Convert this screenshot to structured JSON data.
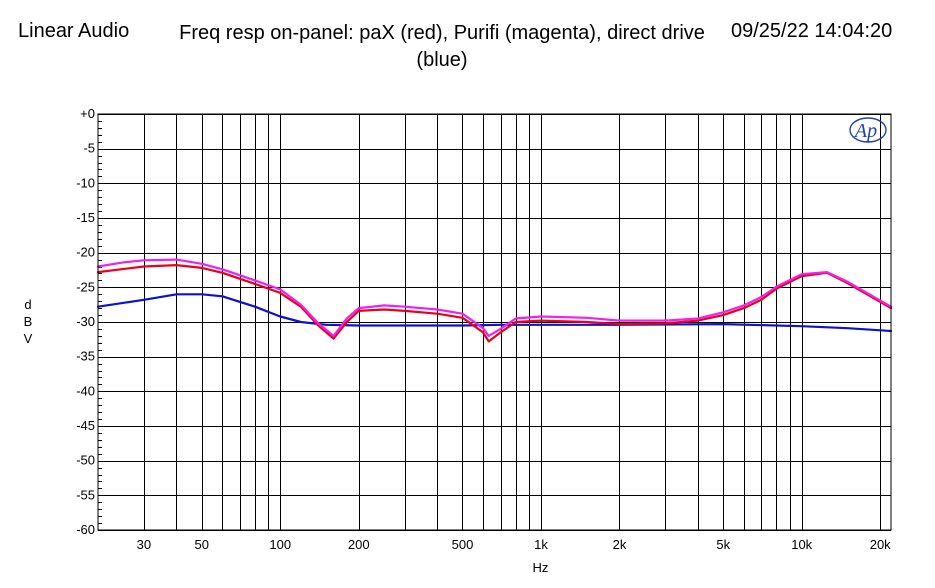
{
  "header": {
    "left": "Linear Audio",
    "title": "Freq resp on-panel: paX (red), Purifi (magenta), direct drive (blue)",
    "datetime": "09/25/22 14:04:20"
  },
  "logo": {
    "text": "Ap"
  },
  "colors": {
    "red": "#e8001c",
    "magenta": "#ee22ee",
    "blue": "#1010d0",
    "grid": "#000000",
    "logo": "#2244aa"
  },
  "chart_data": {
    "type": "line",
    "xlabel": "Hz",
    "ylabel": "d B V",
    "xscale": "log",
    "xlim": [
      20,
      22000
    ],
    "ylim": [
      -60,
      0
    ],
    "grid": true,
    "x_tick_labels": [
      {
        "value": 30,
        "label": "30"
      },
      {
        "value": 50,
        "label": "50"
      },
      {
        "value": 100,
        "label": "100"
      },
      {
        "value": 200,
        "label": "200"
      },
      {
        "value": 500,
        "label": "500"
      },
      {
        "value": 1000,
        "label": "1k"
      },
      {
        "value": 2000,
        "label": "2k"
      },
      {
        "value": 5000,
        "label": "5k"
      },
      {
        "value": 10000,
        "label": "10k"
      },
      {
        "value": 20000,
        "label": "20k"
      }
    ],
    "y_tick_labels": [
      {
        "value": 0,
        "label": "+0"
      },
      {
        "value": -5,
        "label": "-5"
      },
      {
        "value": -10,
        "label": "-10"
      },
      {
        "value": -15,
        "label": "-15"
      },
      {
        "value": -20,
        "label": "-20"
      },
      {
        "value": -25,
        "label": "-25"
      },
      {
        "value": -30,
        "label": "-30"
      },
      {
        "value": -35,
        "label": "-35"
      },
      {
        "value": -40,
        "label": "-40"
      },
      {
        "value": -45,
        "label": "-45"
      },
      {
        "value": -50,
        "label": "-50"
      },
      {
        "value": -55,
        "label": "-55"
      },
      {
        "value": -60,
        "label": "-60"
      }
    ],
    "series": [
      {
        "color": "#1010d0",
        "points": [
          [
            20,
            -27.8
          ],
          [
            30,
            -26.8
          ],
          [
            40,
            -26.0
          ],
          [
            50,
            -26.0
          ],
          [
            60,
            -26.3
          ],
          [
            80,
            -27.8
          ],
          [
            100,
            -29.2
          ],
          [
            120,
            -30.0
          ],
          [
            150,
            -30.4
          ],
          [
            200,
            -30.5
          ],
          [
            300,
            -30.5
          ],
          [
            500,
            -30.5
          ],
          [
            700,
            -30.4
          ],
          [
            1000,
            -30.4
          ],
          [
            2000,
            -30.4
          ],
          [
            5000,
            -30.3
          ],
          [
            10000,
            -30.6
          ],
          [
            15000,
            -30.9
          ],
          [
            22000,
            -31.3
          ]
        ]
      },
      {
        "color": "#e8001c",
        "points": [
          [
            20,
            -22.8
          ],
          [
            30,
            -22.0
          ],
          [
            40,
            -21.8
          ],
          [
            50,
            -22.2
          ],
          [
            60,
            -22.9
          ],
          [
            80,
            -24.5
          ],
          [
            100,
            -25.8
          ],
          [
            120,
            -27.8
          ],
          [
            140,
            -30.5
          ],
          [
            160,
            -32.4
          ],
          [
            180,
            -30.0
          ],
          [
            200,
            -28.4
          ],
          [
            250,
            -28.2
          ],
          [
            300,
            -28.4
          ],
          [
            400,
            -28.8
          ],
          [
            500,
            -29.4
          ],
          [
            600,
            -31.5
          ],
          [
            630,
            -32.8
          ],
          [
            700,
            -31.5
          ],
          [
            800,
            -30.0
          ],
          [
            1000,
            -29.8
          ],
          [
            1500,
            -30.0
          ],
          [
            2000,
            -30.3
          ],
          [
            3000,
            -30.2
          ],
          [
            4000,
            -29.8
          ],
          [
            5000,
            -29.0
          ],
          [
            6000,
            -28.0
          ],
          [
            7000,
            -26.8
          ],
          [
            8000,
            -25.2
          ],
          [
            10000,
            -23.4
          ],
          [
            12500,
            -22.9
          ],
          [
            15000,
            -24.4
          ],
          [
            22000,
            -28.0
          ]
        ]
      },
      {
        "color": "#ee22ee",
        "points": [
          [
            20,
            -22.0
          ],
          [
            25,
            -21.4
          ],
          [
            30,
            -21.1
          ],
          [
            40,
            -21.0
          ],
          [
            50,
            -21.6
          ],
          [
            60,
            -22.4
          ],
          [
            80,
            -24.0
          ],
          [
            100,
            -25.3
          ],
          [
            120,
            -27.5
          ],
          [
            140,
            -30.2
          ],
          [
            160,
            -32.0
          ],
          [
            180,
            -29.5
          ],
          [
            200,
            -28.0
          ],
          [
            250,
            -27.6
          ],
          [
            300,
            -27.8
          ],
          [
            400,
            -28.2
          ],
          [
            500,
            -28.8
          ],
          [
            600,
            -30.9
          ],
          [
            630,
            -32.0
          ],
          [
            700,
            -31.0
          ],
          [
            800,
            -29.5
          ],
          [
            1000,
            -29.2
          ],
          [
            1500,
            -29.4
          ],
          [
            2000,
            -29.8
          ],
          [
            3000,
            -29.8
          ],
          [
            4000,
            -29.5
          ],
          [
            5000,
            -28.6
          ],
          [
            6000,
            -27.6
          ],
          [
            7000,
            -26.4
          ],
          [
            8000,
            -24.9
          ],
          [
            10000,
            -23.1
          ],
          [
            12500,
            -22.8
          ],
          [
            15000,
            -24.2
          ],
          [
            22000,
            -27.8
          ]
        ]
      }
    ]
  }
}
